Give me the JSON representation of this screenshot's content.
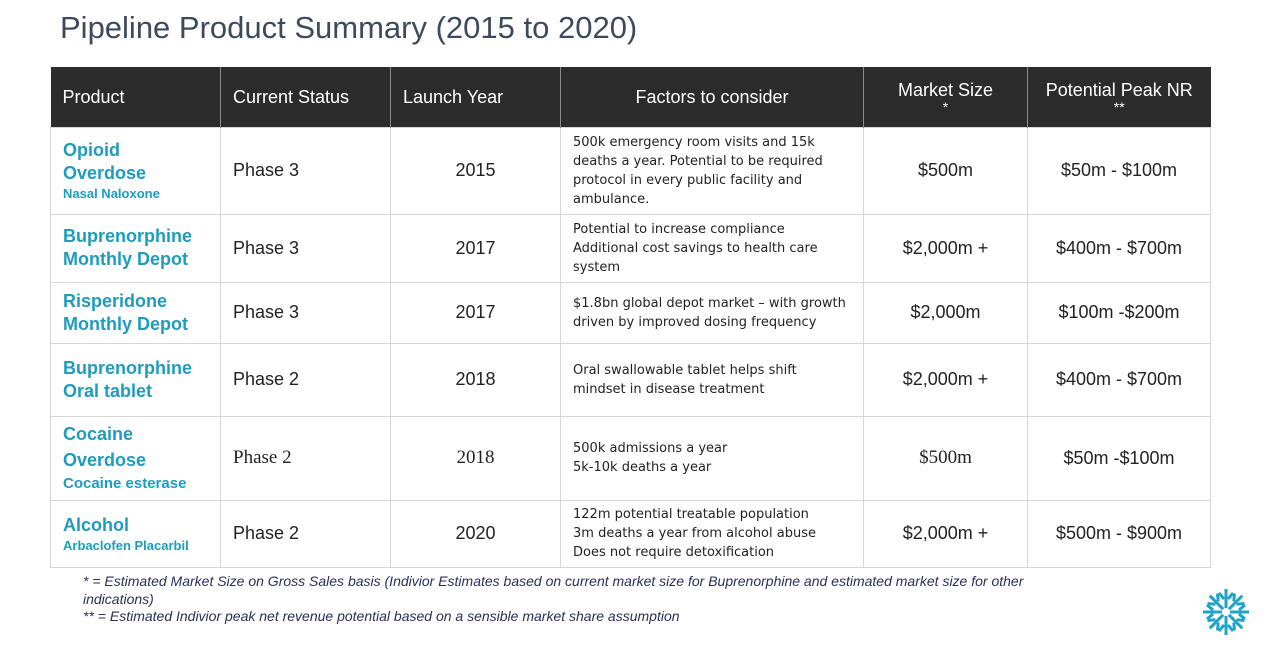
{
  "title": "Pipeline Product Summary (2015 to 2020)",
  "table": {
    "headers": {
      "product": "Product",
      "status": "Current Status",
      "launch": "Launch Year",
      "factors": "Factors to consider",
      "market": "Market Size",
      "market_note": "*",
      "peak": "Potential Peak NR",
      "peak_note": "**"
    },
    "rows": [
      {
        "name_line1": "Opioid",
        "name_line2": "Overdose",
        "subtitle": "Nasal Naloxone",
        "status": "Phase 3",
        "launch": "2015",
        "factors": [
          "500k emergency room visits and 15k",
          "deaths a year.  Potential to be required",
          "protocol in every public facility and",
          "ambulance."
        ],
        "market": "$500m",
        "peak": "$50m - $100m"
      },
      {
        "name_line1": "Buprenorphine",
        "name_line2": "Monthly Depot",
        "subtitle": "",
        "status": "Phase 3",
        "launch": "2017",
        "factors": [
          "Potential to increase compliance",
          "Additional cost savings to health care",
          "system"
        ],
        "market": "$2,000m +",
        "peak": "$400m - $700m"
      },
      {
        "name_line1": "Risperidone",
        "name_line2": "Monthly Depot",
        "subtitle": "",
        "status": "Phase 3",
        "launch": "2017",
        "factors": [
          "$1.8bn global depot market – with growth",
          "driven by improved dosing frequency"
        ],
        "market": "$2,000m",
        "peak": "$100m -$200m"
      },
      {
        "name_line1": "Buprenorphine",
        "name_line2": "Oral tablet",
        "subtitle": "",
        "status": "Phase 2",
        "launch": "2018",
        "factors": [
          "Oral swallowable tablet  helps shift",
          "mindset in disease treatment"
        ],
        "market": "$2,000m +",
        "peak": "$400m - $700m"
      },
      {
        "name_line1": "Cocaine",
        "name_line2": "Overdose",
        "subtitle": "Cocaine esterase",
        "status": "Phase 2",
        "launch": "2018",
        "factors": [
          "500k admissions a year",
          "5k-10k deaths a year"
        ],
        "market": "$500m",
        "peak": "$50m -$100m"
      },
      {
        "name_line1": "Alcohol",
        "name_line2": "",
        "subtitle": "Arbaclofen Placarbil",
        "status": "Phase 2",
        "launch": "2020",
        "factors": [
          "122m potential treatable population",
          "3m deaths a year from alcohol abuse",
          "Does not require detoxification"
        ],
        "market": "$2,000m +",
        "peak": "$500m - $900m"
      }
    ]
  },
  "footnotes": {
    "note1": "* = Estimated Market Size  on Gross Sales basis (Indivior Estimates based on current market size for Buprenorphine and estimated market size for other indications)",
    "note2": "** = Estimated Indivior peak net revenue potential based on a sensible market share assumption"
  },
  "logo": {
    "icon": "snowflake-logo-icon",
    "color_primary": "#1fa3c8",
    "color_secondary": "#2e3a6b"
  }
}
